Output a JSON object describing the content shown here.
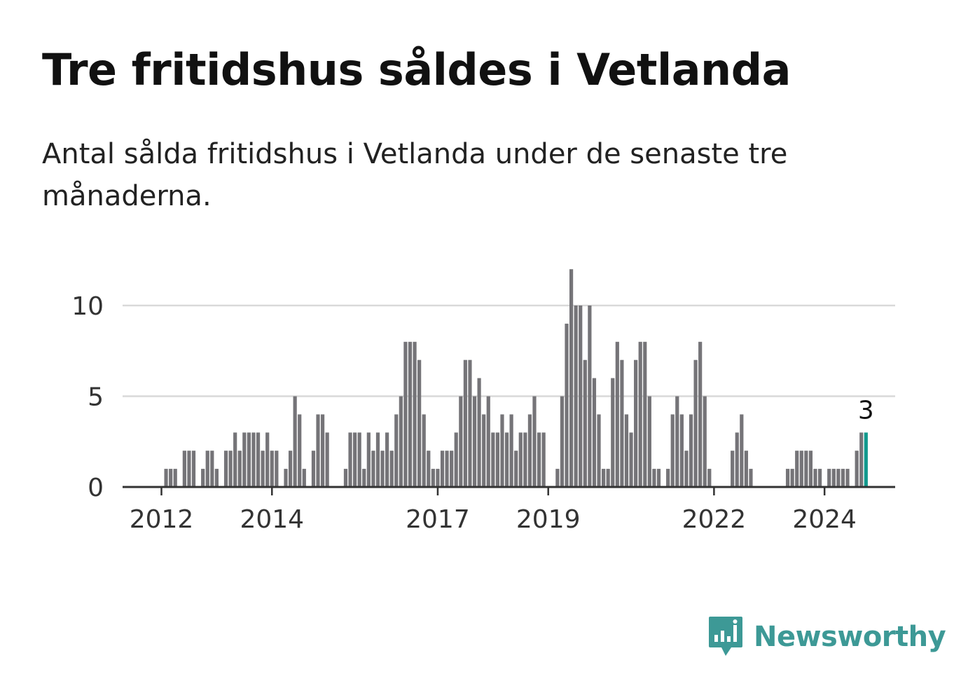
{
  "title": "Tre fritidshus såldes i Vetlanda",
  "subtitle": "Antal sålda fritidshus i Vetlanda under de senaste tre månaderna.",
  "brand": "Newsworthy",
  "colors": {
    "bar": "#757478",
    "highlight": "#12998d",
    "grid": "#d9d9d9",
    "axis": "#333333",
    "brand": "#3d9996"
  },
  "chart_data": {
    "type": "bar",
    "start": "2012-01",
    "values": [
      0,
      1,
      1,
      1,
      0,
      2,
      2,
      2,
      0,
      1,
      2,
      2,
      1,
      0,
      2,
      2,
      3,
      2,
      3,
      3,
      3,
      3,
      2,
      3,
      2,
      2,
      0,
      1,
      2,
      5,
      4,
      1,
      0,
      2,
      4,
      4,
      3,
      0,
      0,
      0,
      1,
      3,
      3,
      3,
      1,
      3,
      2,
      3,
      2,
      3,
      2,
      4,
      5,
      8,
      8,
      8,
      7,
      4,
      2,
      1,
      1,
      2,
      2,
      2,
      3,
      5,
      7,
      7,
      5,
      6,
      4,
      5,
      3,
      3,
      4,
      3,
      4,
      2,
      3,
      3,
      4,
      5,
      3,
      3,
      0,
      0,
      1,
      5,
      9,
      12,
      10,
      10,
      7,
      10,
      6,
      4,
      1,
      1,
      6,
      8,
      7,
      4,
      3,
      7,
      8,
      8,
      5,
      1,
      1,
      0,
      1,
      4,
      5,
      4,
      2,
      4,
      7,
      8,
      5,
      1,
      0,
      0,
      0,
      0,
      2,
      3,
      4,
      2,
      1,
      0,
      0,
      0,
      0,
      0,
      0,
      0,
      1,
      1,
      2,
      2,
      2,
      2,
      1,
      1,
      0,
      1,
      1,
      1,
      1,
      1,
      0,
      2,
      3,
      3
    ],
    "highlight_last": 1,
    "value_label": "3",
    "ylim": [
      0,
      12
    ],
    "yticks": [
      0,
      5,
      10
    ],
    "xticks": [
      "2012",
      "2014",
      "2017",
      "2019",
      "2022",
      "2024"
    ],
    "grid": true
  }
}
